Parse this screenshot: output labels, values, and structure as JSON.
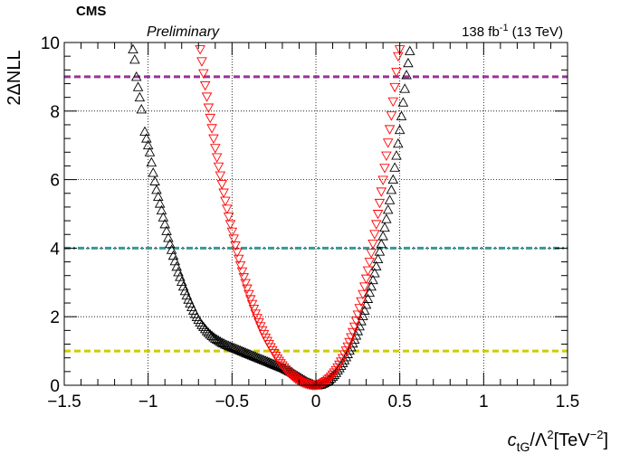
{
  "header": {
    "experiment": "CMS",
    "status": "Preliminary",
    "lumi_value": "138 fb",
    "lumi_exp": "-1",
    "lumi_energy": "(13 TeV)"
  },
  "chart_data": {
    "type": "scatter",
    "title": "",
    "xlabel": "c_tG/Λ^2[TeV^-2]",
    "ylabel": "2ΔNLL",
    "xlim": [
      -1.5,
      1.5
    ],
    "ylim": [
      0,
      10
    ],
    "grid": true,
    "x_major_ticks": [
      -1.5,
      -1,
      -0.5,
      0,
      0.5,
      1,
      1.5
    ],
    "x_tick_labels": [
      "−1.5",
      "−1",
      "−0.5",
      "0",
      "0.5",
      "1",
      "1.5"
    ],
    "y_major_ticks": [
      0,
      2,
      4,
      6,
      8,
      10
    ],
    "y_tick_labels": [
      "0",
      "2",
      "4",
      "6",
      "8",
      "10"
    ],
    "reference_lines": [
      {
        "y": 9,
        "color": "#993399",
        "style": "dashed"
      },
      {
        "y": 4,
        "color": "#339999",
        "style": "dash-dot"
      },
      {
        "y": 1,
        "color": "#cccc00",
        "style": "dashed"
      }
    ],
    "series": [
      {
        "color": "#000000",
        "marker": "triangle-up",
        "points": [
          [
            -1.09,
            9.8
          ],
          [
            -1.08,
            9.5
          ],
          [
            -1.07,
            9.0
          ],
          [
            -1.06,
            8.7
          ],
          [
            -1.05,
            8.4
          ],
          [
            -1.04,
            8.05
          ],
          [
            -1.02,
            7.4
          ],
          [
            -1.01,
            7.2
          ],
          [
            -1.0,
            7.0
          ],
          [
            -0.99,
            6.8
          ],
          [
            -0.98,
            6.5
          ],
          [
            -0.97,
            6.2
          ],
          [
            -0.96,
            5.95
          ],
          [
            -0.95,
            5.7
          ],
          [
            -0.94,
            5.5
          ],
          [
            -0.93,
            5.3
          ],
          [
            -0.92,
            5.1
          ],
          [
            -0.91,
            4.9
          ],
          [
            -0.9,
            4.7
          ],
          [
            -0.89,
            4.5
          ],
          [
            -0.88,
            4.3
          ],
          [
            -0.87,
            4.12
          ],
          [
            -0.86,
            3.95
          ],
          [
            -0.85,
            3.78
          ],
          [
            -0.84,
            3.62
          ],
          [
            -0.83,
            3.46
          ],
          [
            -0.82,
            3.3
          ],
          [
            -0.81,
            3.16
          ],
          [
            -0.8,
            3.02
          ],
          [
            -0.79,
            2.88
          ],
          [
            -0.78,
            2.75
          ],
          [
            -0.77,
            2.62
          ],
          [
            -0.76,
            2.5
          ],
          [
            -0.75,
            2.39
          ],
          [
            -0.74,
            2.28
          ],
          [
            -0.73,
            2.18
          ],
          [
            -0.72,
            2.08
          ],
          [
            -0.71,
            1.99
          ],
          [
            -0.7,
            1.91
          ],
          [
            -0.69,
            1.83
          ],
          [
            -0.68,
            1.76
          ],
          [
            -0.67,
            1.7
          ],
          [
            -0.66,
            1.64
          ],
          [
            -0.65,
            1.58
          ],
          [
            -0.64,
            1.53
          ],
          [
            -0.63,
            1.48
          ],
          [
            -0.62,
            1.44
          ],
          [
            -0.61,
            1.4
          ],
          [
            -0.6,
            1.36
          ],
          [
            -0.59,
            1.33
          ],
          [
            -0.58,
            1.3
          ],
          [
            -0.57,
            1.27
          ],
          [
            -0.56,
            1.24
          ],
          [
            -0.55,
            1.22
          ],
          [
            -0.54,
            1.19
          ],
          [
            -0.53,
            1.17
          ],
          [
            -0.52,
            1.15
          ],
          [
            -0.51,
            1.13
          ],
          [
            -0.5,
            1.11
          ],
          [
            -0.49,
            1.09
          ],
          [
            -0.48,
            1.07
          ],
          [
            -0.47,
            1.05
          ],
          [
            -0.46,
            1.03
          ],
          [
            -0.45,
            1.01
          ],
          [
            -0.44,
            0.99
          ],
          [
            -0.43,
            0.97
          ],
          [
            -0.42,
            0.95
          ],
          [
            -0.41,
            0.93
          ],
          [
            -0.4,
            0.91
          ],
          [
            -0.39,
            0.89
          ],
          [
            -0.38,
            0.87
          ],
          [
            -0.37,
            0.85
          ],
          [
            -0.36,
            0.83
          ],
          [
            -0.35,
            0.81
          ],
          [
            -0.34,
            0.79
          ],
          [
            -0.33,
            0.77
          ],
          [
            -0.32,
            0.75
          ],
          [
            -0.31,
            0.73
          ],
          [
            -0.3,
            0.71
          ],
          [
            -0.29,
            0.69
          ],
          [
            -0.28,
            0.67
          ],
          [
            -0.27,
            0.65
          ],
          [
            -0.26,
            0.63
          ],
          [
            -0.25,
            0.61
          ],
          [
            -0.24,
            0.59
          ],
          [
            -0.23,
            0.57
          ],
          [
            -0.22,
            0.55
          ],
          [
            -0.21,
            0.53
          ],
          [
            -0.2,
            0.51
          ],
          [
            -0.19,
            0.49
          ],
          [
            -0.18,
            0.46
          ],
          [
            -0.17,
            0.44
          ],
          [
            -0.16,
            0.41
          ],
          [
            -0.15,
            0.39
          ],
          [
            -0.14,
            0.36
          ],
          [
            -0.13,
            0.33
          ],
          [
            -0.12,
            0.3
          ],
          [
            -0.11,
            0.27
          ],
          [
            -0.1,
            0.24
          ],
          [
            -0.09,
            0.21
          ],
          [
            -0.08,
            0.18
          ],
          [
            -0.07,
            0.15
          ],
          [
            -0.06,
            0.12
          ],
          [
            -0.05,
            0.09
          ],
          [
            -0.04,
            0.07
          ],
          [
            -0.03,
            0.05
          ],
          [
            -0.02,
            0.03
          ],
          [
            -0.01,
            0.01
          ],
          [
            0.0,
            0.0
          ],
          [
            0.01,
            0.0
          ],
          [
            0.02,
            0.01
          ],
          [
            0.03,
            0.02
          ],
          [
            0.04,
            0.04
          ],
          [
            0.05,
            0.06
          ],
          [
            0.06,
            0.09
          ],
          [
            0.07,
            0.12
          ],
          [
            0.08,
            0.16
          ],
          [
            0.09,
            0.2
          ],
          [
            0.1,
            0.25
          ],
          [
            0.11,
            0.3
          ],
          [
            0.12,
            0.36
          ],
          [
            0.13,
            0.43
          ],
          [
            0.14,
            0.5
          ],
          [
            0.15,
            0.57
          ],
          [
            0.16,
            0.65
          ],
          [
            0.17,
            0.73
          ],
          [
            0.18,
            0.82
          ],
          [
            0.19,
            0.91
          ],
          [
            0.2,
            1.01
          ],
          [
            0.21,
            1.11
          ],
          [
            0.22,
            1.22
          ],
          [
            0.23,
            1.33
          ],
          [
            0.24,
            1.45
          ],
          [
            0.25,
            1.58
          ],
          [
            0.26,
            1.72
          ],
          [
            0.27,
            1.87
          ],
          [
            0.28,
            2.02
          ],
          [
            0.29,
            2.18
          ],
          [
            0.3,
            2.35
          ],
          [
            0.31,
            2.52
          ],
          [
            0.32,
            2.7
          ],
          [
            0.33,
            2.88
          ],
          [
            0.34,
            3.07
          ],
          [
            0.35,
            3.27
          ],
          [
            0.36,
            3.47
          ],
          [
            0.37,
            3.68
          ],
          [
            0.38,
            3.9
          ],
          [
            0.39,
            4.12
          ],
          [
            0.4,
            4.35
          ],
          [
            0.41,
            4.6
          ],
          [
            0.42,
            4.85
          ],
          [
            0.43,
            5.12
          ],
          [
            0.44,
            5.4
          ],
          [
            0.45,
            5.7
          ],
          [
            0.46,
            6.0
          ],
          [
            0.47,
            6.35
          ],
          [
            0.48,
            6.7
          ],
          [
            0.49,
            7.05
          ],
          [
            0.5,
            7.45
          ],
          [
            0.51,
            7.85
          ],
          [
            0.52,
            8.25
          ],
          [
            0.53,
            8.65
          ],
          [
            0.54,
            9.05
          ],
          [
            0.55,
            9.4
          ],
          [
            0.56,
            9.75
          ]
        ]
      },
      {
        "color": "#ff0000",
        "marker": "triangle-down",
        "points": [
          [
            -0.69,
            9.8
          ],
          [
            -0.68,
            9.45
          ],
          [
            -0.67,
            9.1
          ],
          [
            -0.66,
            8.75
          ],
          [
            -0.65,
            8.42
          ],
          [
            -0.64,
            8.1
          ],
          [
            -0.63,
            7.8
          ],
          [
            -0.62,
            7.5
          ],
          [
            -0.61,
            7.2
          ],
          [
            -0.6,
            6.92
          ],
          [
            -0.59,
            6.65
          ],
          [
            -0.58,
            6.38
          ],
          [
            -0.57,
            6.12
          ],
          [
            -0.56,
            5.87
          ],
          [
            -0.55,
            5.62
          ],
          [
            -0.54,
            5.38
          ],
          [
            -0.53,
            5.15
          ],
          [
            -0.52,
            4.92
          ],
          [
            -0.51,
            4.7
          ],
          [
            -0.5,
            4.48
          ],
          [
            -0.49,
            4.28
          ],
          [
            -0.48,
            4.08
          ],
          [
            -0.47,
            3.88
          ],
          [
            -0.46,
            3.69
          ],
          [
            -0.45,
            3.5
          ],
          [
            -0.44,
            3.32
          ],
          [
            -0.43,
            3.15
          ],
          [
            -0.42,
            2.98
          ],
          [
            -0.41,
            2.82
          ],
          [
            -0.4,
            2.66
          ],
          [
            -0.39,
            2.51
          ],
          [
            -0.38,
            2.37
          ],
          [
            -0.37,
            2.23
          ],
          [
            -0.36,
            2.09
          ],
          [
            -0.35,
            1.96
          ],
          [
            -0.34,
            1.84
          ],
          [
            -0.33,
            1.72
          ],
          [
            -0.32,
            1.6
          ],
          [
            -0.31,
            1.49
          ],
          [
            -0.3,
            1.39
          ],
          [
            -0.29,
            1.29
          ],
          [
            -0.28,
            1.2
          ],
          [
            -0.27,
            1.11
          ],
          [
            -0.26,
            1.02
          ],
          [
            -0.25,
            0.94
          ],
          [
            -0.24,
            0.86
          ],
          [
            -0.23,
            0.78
          ],
          [
            -0.22,
            0.71
          ],
          [
            -0.21,
            0.64
          ],
          [
            -0.2,
            0.58
          ],
          [
            -0.19,
            0.52
          ],
          [
            -0.18,
            0.46
          ],
          [
            -0.17,
            0.41
          ],
          [
            -0.16,
            0.36
          ],
          [
            -0.15,
            0.31
          ],
          [
            -0.14,
            0.27
          ],
          [
            -0.13,
            0.23
          ],
          [
            -0.12,
            0.19
          ],
          [
            -0.11,
            0.16
          ],
          [
            -0.1,
            0.13
          ],
          [
            -0.09,
            0.1
          ],
          [
            -0.08,
            0.08
          ],
          [
            -0.07,
            0.06
          ],
          [
            -0.06,
            0.04
          ],
          [
            -0.05,
            0.03
          ],
          [
            -0.04,
            0.02
          ],
          [
            -0.03,
            0.01
          ],
          [
            -0.02,
            0.0
          ],
          [
            -0.01,
            0.0
          ],
          [
            0.0,
            0.0
          ],
          [
            0.01,
            0.01
          ],
          [
            0.02,
            0.02
          ],
          [
            0.03,
            0.04
          ],
          [
            0.04,
            0.06
          ],
          [
            0.05,
            0.09
          ],
          [
            0.06,
            0.12
          ],
          [
            0.07,
            0.16
          ],
          [
            0.08,
            0.2
          ],
          [
            0.09,
            0.25
          ],
          [
            0.1,
            0.31
          ],
          [
            0.11,
            0.37
          ],
          [
            0.12,
            0.44
          ],
          [
            0.13,
            0.52
          ],
          [
            0.14,
            0.6
          ],
          [
            0.15,
            0.69
          ],
          [
            0.16,
            0.79
          ],
          [
            0.17,
            0.9
          ],
          [
            0.18,
            1.01
          ],
          [
            0.19,
            1.13
          ],
          [
            0.2,
            1.26
          ],
          [
            0.21,
            1.4
          ],
          [
            0.22,
            1.55
          ],
          [
            0.23,
            1.71
          ],
          [
            0.24,
            1.88
          ],
          [
            0.25,
            2.06
          ],
          [
            0.26,
            2.25
          ],
          [
            0.27,
            2.45
          ],
          [
            0.28,
            2.66
          ],
          [
            0.29,
            2.88
          ],
          [
            0.3,
            3.11
          ],
          [
            0.31,
            3.35
          ],
          [
            0.32,
            3.6
          ],
          [
            0.33,
            3.86
          ],
          [
            0.34,
            4.13
          ],
          [
            0.35,
            4.41
          ],
          [
            0.36,
            4.7
          ],
          [
            0.37,
            5.0
          ],
          [
            0.38,
            5.32
          ],
          [
            0.39,
            5.65
          ],
          [
            0.4,
            5.99
          ],
          [
            0.41,
            6.34
          ],
          [
            0.42,
            6.7
          ],
          [
            0.43,
            7.08
          ],
          [
            0.44,
            7.47
          ],
          [
            0.45,
            7.87
          ],
          [
            0.46,
            8.28
          ],
          [
            0.47,
            8.7
          ],
          [
            0.48,
            9.14
          ],
          [
            0.49,
            9.6
          ],
          [
            0.5,
            9.8
          ]
        ]
      }
    ]
  }
}
